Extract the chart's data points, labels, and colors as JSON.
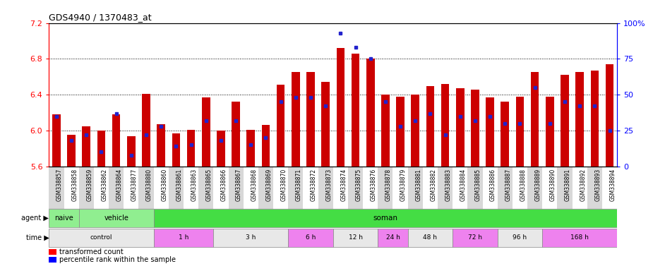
{
  "title": "GDS4940 / 1370483_at",
  "samples": [
    "GSM338857",
    "GSM338858",
    "GSM338859",
    "GSM338862",
    "GSM338864",
    "GSM338877",
    "GSM338880",
    "GSM338860",
    "GSM338861",
    "GSM338863",
    "GSM338865",
    "GSM338866",
    "GSM338867",
    "GSM338868",
    "GSM338869",
    "GSM338870",
    "GSM338871",
    "GSM338872",
    "GSM338873",
    "GSM338874",
    "GSM338875",
    "GSM338876",
    "GSM338878",
    "GSM338879",
    "GSM338881",
    "GSM338882",
    "GSM338883",
    "GSM338884",
    "GSM338885",
    "GSM338886",
    "GSM338887",
    "GSM338888",
    "GSM338889",
    "GSM338890",
    "GSM338891",
    "GSM338892",
    "GSM338893",
    "GSM338894"
  ],
  "bar_heights": [
    6.18,
    5.95,
    6.05,
    6.0,
    6.18,
    5.94,
    6.41,
    6.07,
    5.97,
    6.01,
    6.37,
    6.0,
    6.32,
    6.01,
    6.06,
    6.51,
    6.65,
    6.65,
    6.54,
    6.92,
    6.86,
    6.8,
    6.4,
    6.38,
    6.4,
    6.5,
    6.52,
    6.47,
    6.46,
    6.37,
    6.32,
    6.38,
    6.65,
    6.38,
    6.62,
    6.65,
    6.67,
    6.74
  ],
  "percentile_ranks": [
    35,
    18,
    22,
    10,
    37,
    8,
    22,
    28,
    14,
    15,
    32,
    18,
    32,
    15,
    20,
    45,
    48,
    48,
    42,
    93,
    83,
    75,
    45,
    28,
    32,
    37,
    22,
    35,
    32,
    35,
    30,
    30,
    55,
    30,
    45,
    42,
    42,
    25
  ],
  "y_min": 5.6,
  "y_max": 7.2,
  "y_ticks": [
    5.6,
    6.0,
    6.4,
    6.8,
    7.2
  ],
  "y_right_ticks": [
    0,
    25,
    50,
    75,
    100
  ],
  "bar_color": "#cc0000",
  "blue_color": "#2222cc",
  "plot_bg": "#ffffff",
  "tick_bg_even": "#d8d8d8",
  "tick_bg_odd": "#ffffff",
  "agent_naive_color": "#90ee90",
  "agent_vehicle_color": "#90ee90",
  "agent_soman_color": "#44dd44",
  "time_groups": [
    {
      "label": "control",
      "start": 0,
      "end": 7,
      "color": "#e8e8e8"
    },
    {
      "label": "1 h",
      "start": 7,
      "end": 11,
      "color": "#ee82ee"
    },
    {
      "label": "3 h",
      "start": 11,
      "end": 16,
      "color": "#e8e8e8"
    },
    {
      "label": "6 h",
      "start": 16,
      "end": 19,
      "color": "#ee82ee"
    },
    {
      "label": "12 h",
      "start": 19,
      "end": 22,
      "color": "#e8e8e8"
    },
    {
      "label": "24 h",
      "start": 22,
      "end": 24,
      "color": "#ee82ee"
    },
    {
      "label": "48 h",
      "start": 24,
      "end": 27,
      "color": "#e8e8e8"
    },
    {
      "label": "72 h",
      "start": 27,
      "end": 30,
      "color": "#ee82ee"
    },
    {
      "label": "96 h",
      "start": 30,
      "end": 33,
      "color": "#e8e8e8"
    },
    {
      "label": "168 h",
      "start": 33,
      "end": 38,
      "color": "#ee82ee"
    }
  ]
}
